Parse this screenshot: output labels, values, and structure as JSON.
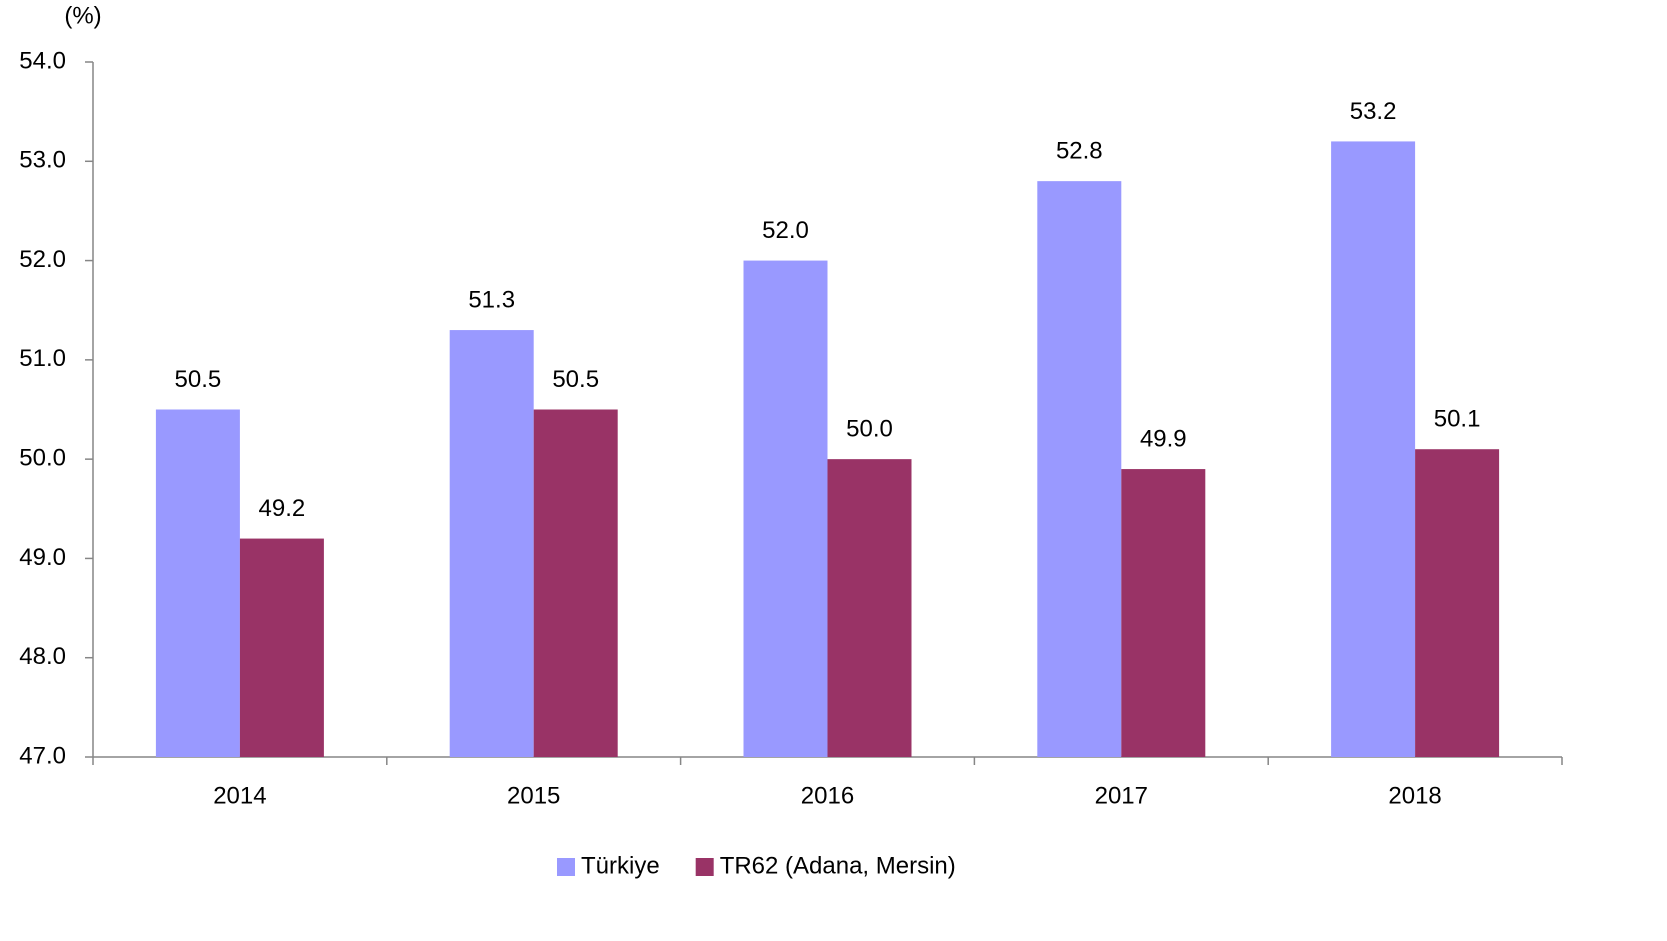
{
  "chart_data": {
    "type": "bar",
    "y_label": "(%)",
    "categories": [
      "2014",
      "2015",
      "2016",
      "2017",
      "2018"
    ],
    "series": [
      {
        "name": "Türkiye",
        "color": "#9999ff",
        "values": [
          50.5,
          51.3,
          52.0,
          52.8,
          53.2
        ],
        "value_labels": [
          "50.5",
          "51.3",
          "52.0",
          "52.8",
          "53.2"
        ]
      },
      {
        "name": "TR62 (Adana, Mersin)",
        "color": "#993366",
        "values": [
          49.2,
          50.5,
          50.0,
          49.9,
          50.1
        ],
        "value_labels": [
          "49.2",
          "50.5",
          "50.0",
          "49.9",
          "50.1"
        ]
      }
    ],
    "ylim": [
      47,
      54
    ],
    "yticks": [
      {
        "value": 47,
        "label": "47.0"
      },
      {
        "value": 48,
        "label": "48.0"
      },
      {
        "value": 49,
        "label": "49.0"
      },
      {
        "value": 50,
        "label": "50.0"
      },
      {
        "value": 51,
        "label": "51.0"
      },
      {
        "value": 52,
        "label": "52.0"
      },
      {
        "value": 53,
        "label": "53.0"
      },
      {
        "value": 54,
        "label": "54.0"
      }
    ],
    "grid": false,
    "legend": "bottom"
  }
}
